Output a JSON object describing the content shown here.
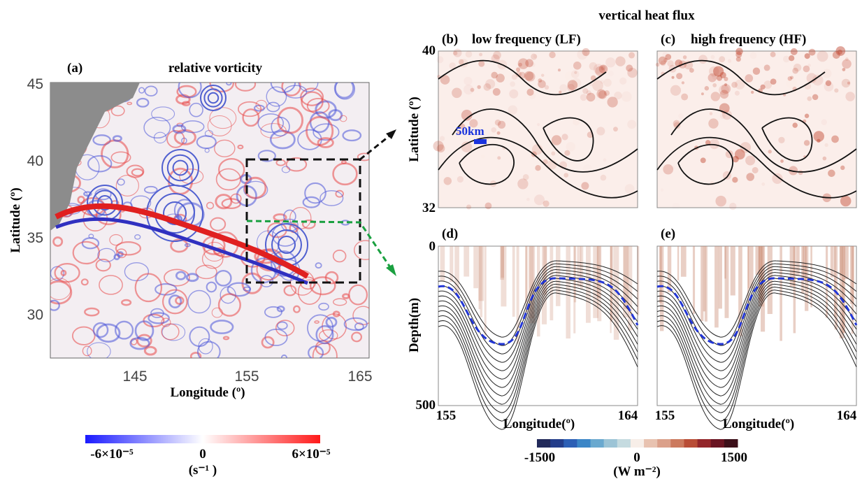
{
  "panel_a": {
    "label": "(a)",
    "title": "relative vorticity",
    "y_axis_label": "Latitude (º)",
    "yticks": [
      "45",
      "40",
      "35",
      "30"
    ],
    "x_axis_label": "Longitude (º)",
    "xticks": [
      "145",
      "155",
      "165"
    ],
    "colorbar": {
      "min": "-6×10⁻⁵",
      "mid": "0",
      "max": "6×10⁻⁵",
      "unit": "(s⁻¹ )"
    }
  },
  "heat_flux": {
    "title": "vertical heat flux",
    "panel_b": {
      "label": "(b)",
      "title": "low frequency (LF)",
      "scale_label": "50km"
    },
    "panel_c": {
      "label": "(c)",
      "title": "high frequency (HF)"
    },
    "map_y_axis_label": "Latitude (º)",
    "map_yticks": [
      "40",
      "32"
    ],
    "panel_d": {
      "label": "(d)"
    },
    "panel_e": {
      "label": "(e)"
    },
    "depth_axis_label": "Depth(m)",
    "depth_ticks": [
      "0",
      "500"
    ],
    "section_xticks": [
      "155",
      "164"
    ],
    "section_x_axis_label": "Longitude(º)",
    "colorbar": {
      "min": "-1500",
      "mid": "0",
      "max": "1500",
      "unit": "(W m⁻²)"
    }
  }
}
